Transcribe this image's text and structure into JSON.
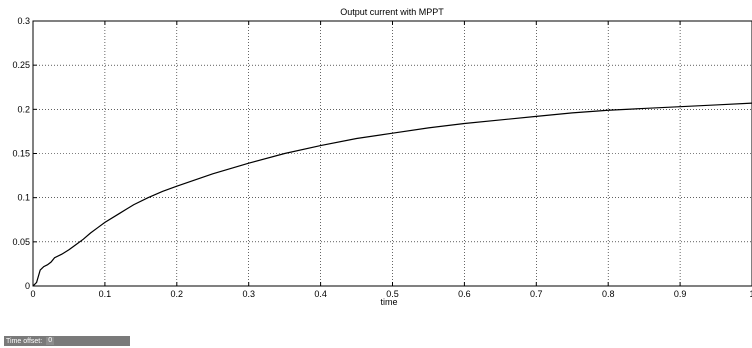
{
  "chart_data": {
    "type": "line",
    "title": "Output current with MPPT",
    "xlabel": "time",
    "ylabel": "",
    "xlim": [
      0,
      1
    ],
    "ylim": [
      0,
      0.3
    ],
    "grid": true,
    "xticks": [
      "0",
      "0.1",
      "0.2",
      "0.3",
      "0.4",
      "0.5",
      "0.6",
      "0.7",
      "0.8",
      "0.9",
      "1"
    ],
    "yticks": [
      "0",
      "0.05",
      "0.1",
      "0.15",
      "0.2",
      "0.25",
      "0.3"
    ],
    "series": [
      {
        "color": "#000000",
        "x": [
          0,
          0.005,
          0.01,
          0.015,
          0.02,
          0.025,
          0.03,
          0.04,
          0.05,
          0.06,
          0.07,
          0.08,
          0.09,
          0.1,
          0.12,
          0.14,
          0.16,
          0.18,
          0.2,
          0.25,
          0.3,
          0.35,
          0.4,
          0.45,
          0.5,
          0.55,
          0.6,
          0.65,
          0.7,
          0.75,
          0.8,
          0.85,
          0.9,
          0.95,
          1.0
        ],
        "y": [
          0,
          0.004,
          0.018,
          0.022,
          0.024,
          0.027,
          0.032,
          0.036,
          0.041,
          0.047,
          0.053,
          0.06,
          0.066,
          0.072,
          0.082,
          0.092,
          0.1,
          0.107,
          0.113,
          0.127,
          0.139,
          0.15,
          0.159,
          0.167,
          0.173,
          0.179,
          0.184,
          0.188,
          0.192,
          0.196,
          0.199,
          0.201,
          0.203,
          0.205,
          0.207
        ]
      }
    ]
  },
  "time_offset": {
    "label": "Time offset:",
    "value": "0"
  }
}
